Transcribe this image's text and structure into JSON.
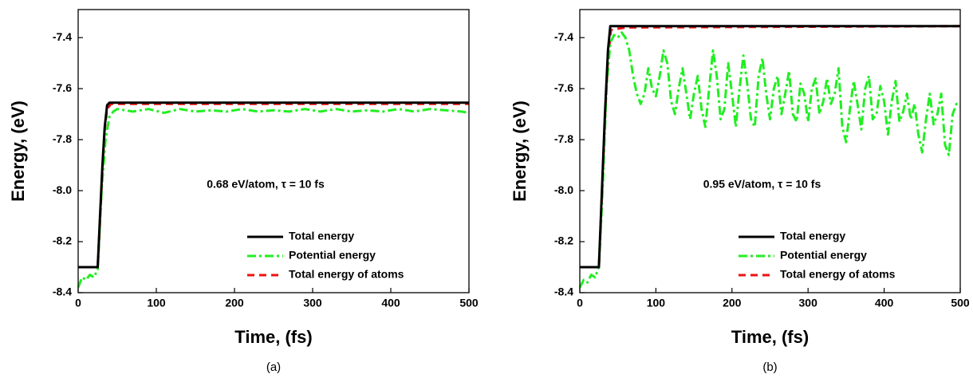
{
  "chart_data": [
    {
      "type": "line",
      "caption": "(a)",
      "annotation": "0.68 eV/atom, τ = 10 fs",
      "xlabel": "Time, (fs)",
      "ylabel": "Energy, (eV)",
      "xlim": [
        0,
        500
      ],
      "ylim": [
        -8.4,
        -7.29
      ],
      "xticks": [
        0,
        100,
        200,
        300,
        400,
        500
      ],
      "yticks": [
        -8.4,
        -8.2,
        {
          "value": -8,
          "label": "-8.0"
        },
        -7.8,
        -7.6,
        -7.4
      ],
      "legend": "lower right",
      "series": [
        {
          "name": "Total energy",
          "color": "#000000",
          "linestyle": "solid",
          "x": [
            0,
            25,
            28,
            31,
            34,
            37,
            40,
            500
          ],
          "values": [
            -8.3,
            -8.3,
            -8.1,
            -7.9,
            -7.75,
            -7.665,
            -7.655,
            -7.655
          ]
        },
        {
          "name": "Potential energy",
          "color": "#22ee22",
          "linestyle": "dashdot",
          "x": [
            0,
            5,
            10,
            15,
            20,
            25,
            30,
            35,
            40,
            45,
            50,
            70,
            90,
            110,
            130,
            150,
            170,
            190,
            210,
            230,
            250,
            270,
            290,
            310,
            330,
            350,
            370,
            390,
            410,
            430,
            450,
            470,
            490,
            500
          ],
          "values": [
            -8.38,
            -8.34,
            -8.35,
            -8.33,
            -8.34,
            -8.31,
            -8.0,
            -7.8,
            -7.71,
            -7.69,
            -7.68,
            -7.69,
            -7.68,
            -7.695,
            -7.68,
            -7.69,
            -7.685,
            -7.69,
            -7.68,
            -7.69,
            -7.685,
            -7.69,
            -7.68,
            -7.69,
            -7.68,
            -7.69,
            -7.685,
            -7.69,
            -7.68,
            -7.69,
            -7.68,
            -7.685,
            -7.69,
            -7.695
          ]
        },
        {
          "name": "Total energy of atoms",
          "color": "#ee1111",
          "linestyle": "dash",
          "x": [
            0,
            25,
            28,
            31,
            34,
            37,
            42,
            500
          ],
          "values": [
            -8.3,
            -8.3,
            -8.12,
            -7.92,
            -7.76,
            -7.68,
            -7.66,
            -7.66
          ]
        }
      ]
    },
    {
      "type": "line",
      "caption": "(b)",
      "annotation": "0.95 eV/atom, τ = 10 fs",
      "xlabel": "Time, (fs)",
      "ylabel": "Energy, (eV)",
      "xlim": [
        0,
        500
      ],
      "ylim": [
        -8.4,
        -7.29
      ],
      "xticks": [
        0,
        100,
        200,
        300,
        400,
        500
      ],
      "yticks": [
        -8.4,
        -8.2,
        {
          "value": -8,
          "label": "-8.0"
        },
        -7.8,
        -7.6,
        -7.4
      ],
      "legend": "lower right",
      "series": [
        {
          "name": "Total energy",
          "color": "#000000",
          "linestyle": "solid",
          "x": [
            0,
            25,
            29,
            33,
            37,
            40,
            500
          ],
          "values": [
            -8.3,
            -8.3,
            -8.0,
            -7.7,
            -7.45,
            -7.355,
            -7.355
          ]
        },
        {
          "name": "Potential energy",
          "color": "#22ee22",
          "linestyle": "dashdot",
          "x": [
            0,
            5,
            10,
            15,
            20,
            25,
            30,
            35,
            40,
            45,
            50,
            55,
            60,
            65,
            70,
            75,
            80,
            85,
            90,
            95,
            100,
            105,
            110,
            115,
            120,
            125,
            130,
            135,
            140,
            145,
            150,
            155,
            160,
            165,
            170,
            175,
            180,
            185,
            190,
            195,
            200,
            205,
            210,
            215,
            220,
            225,
            230,
            235,
            240,
            245,
            250,
            255,
            260,
            265,
            270,
            275,
            280,
            285,
            290,
            295,
            300,
            305,
            310,
            315,
            320,
            325,
            330,
            335,
            340,
            345,
            350,
            355,
            360,
            365,
            370,
            375,
            380,
            385,
            390,
            395,
            400,
            405,
            410,
            415,
            420,
            425,
            430,
            435,
            440,
            445,
            450,
            455,
            460,
            465,
            470,
            475,
            480,
            485,
            490,
            495,
            500
          ],
          "values": [
            -8.38,
            -8.35,
            -8.36,
            -8.33,
            -8.34,
            -8.3,
            -8.0,
            -7.6,
            -7.42,
            -7.39,
            -7.4,
            -7.38,
            -7.4,
            -7.45,
            -7.55,
            -7.62,
            -7.66,
            -7.62,
            -7.52,
            -7.6,
            -7.63,
            -7.55,
            -7.45,
            -7.5,
            -7.65,
            -7.7,
            -7.6,
            -7.52,
            -7.62,
            -7.72,
            -7.62,
            -7.55,
            -7.68,
            -7.75,
            -7.6,
            -7.45,
            -7.55,
            -7.72,
            -7.68,
            -7.5,
            -7.62,
            -7.75,
            -7.6,
            -7.47,
            -7.58,
            -7.72,
            -7.75,
            -7.55,
            -7.48,
            -7.62,
            -7.72,
            -7.6,
            -7.55,
            -7.7,
            -7.62,
            -7.53,
            -7.7,
            -7.73,
            -7.58,
            -7.62,
            -7.73,
            -7.6,
            -7.56,
            -7.7,
            -7.65,
            -7.56,
            -7.66,
            -7.62,
            -7.52,
            -7.75,
            -7.81,
            -7.68,
            -7.57,
            -7.66,
            -7.76,
            -7.6,
            -7.55,
            -7.72,
            -7.7,
            -7.59,
            -7.65,
            -7.78,
            -7.65,
            -7.57,
            -7.73,
            -7.69,
            -7.62,
            -7.72,
            -7.66,
            -7.78,
            -7.85,
            -7.72,
            -7.62,
            -7.74,
            -7.7,
            -7.62,
            -7.82,
            -7.86,
            -7.7,
            -7.66,
            -7.67
          ]
        },
        {
          "name": "Total energy of atoms",
          "color": "#ee1111",
          "linestyle": "dash",
          "x": [
            0,
            25,
            29,
            33,
            37,
            41,
            50,
            60,
            500
          ],
          "values": [
            -8.3,
            -8.3,
            -8.02,
            -7.72,
            -7.48,
            -7.37,
            -7.365,
            -7.36,
            -7.355
          ]
        }
      ]
    }
  ]
}
